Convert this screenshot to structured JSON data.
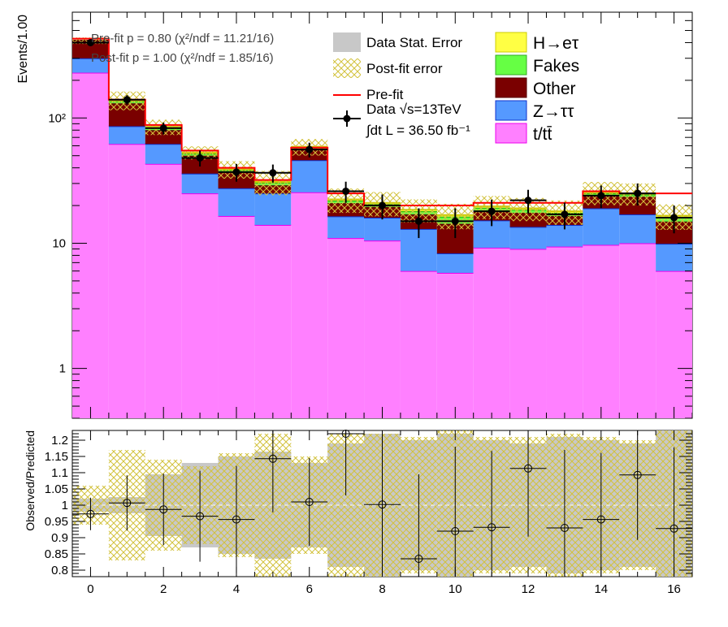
{
  "chart_data": {
    "type": "bar",
    "x": [
      0,
      1,
      2,
      3,
      4,
      5,
      6,
      7,
      8,
      9,
      10,
      11,
      12,
      13,
      14,
      15,
      16
    ],
    "top": {
      "ylabel": "Events/1.00",
      "yscale": "log",
      "ylim": [
        0.4,
        700
      ],
      "yticks": [
        "1",
        "10",
        "10²"
      ],
      "series": [
        {
          "name": "t/tt̄",
          "color": "#ff80ff",
          "values": [
            230,
            62,
            43,
            25,
            16.5,
            14,
            25.5,
            11,
            10.5,
            6,
            5.8,
            9.2,
            9,
            9.4,
            9.7,
            10,
            6
          ]
        },
        {
          "name": "Z→ττ",
          "color": "#5599ff",
          "values": [
            70,
            24,
            19,
            11,
            11,
            11,
            20.5,
            5.4,
            5.5,
            7,
            2.5,
            6,
            4.5,
            4.6,
            9.3,
            7,
            3.9
          ]
        },
        {
          "name": "Other",
          "color": "#7a0000",
          "values": [
            115,
            45,
            18,
            14,
            9.5,
            4,
            11,
            4.5,
            3.5,
            4,
            6,
            3,
            4,
            2.5,
            5,
            6.5,
            5
          ]
        },
        {
          "name": "Fakes",
          "color": "#66ff44",
          "values": [
            0,
            5,
            3,
            2,
            1.5,
            1.5,
            1.5,
            1,
            1,
            1,
            2,
            1,
            1,
            1,
            1,
            1,
            1.2
          ]
        },
        {
          "name": "H→eτ",
          "color": "#ffff44",
          "values": [
            0,
            3,
            2,
            1,
            0.5,
            0.5,
            0.5,
            0.5,
            0.5,
            0.5,
            0.5,
            0.5,
            0.5,
            0.5,
            0.5,
            0.5,
            0.5
          ]
        }
      ],
      "prefit": [
        430,
        140,
        88,
        55,
        40,
        32,
        58,
        25,
        20,
        20,
        20,
        21,
        21,
        21,
        26,
        25,
        25
      ],
      "data": [
        400,
        140,
        83,
        48,
        37,
        36.5,
        56,
        26,
        20,
        15,
        15,
        18,
        22,
        17,
        24,
        25,
        16
      ],
      "data_err": [
        20,
        12,
        9,
        7,
        6,
        6,
        7.5,
        5,
        4.5,
        4,
        4,
        4.3,
        4.7,
        4.1,
        4.9,
        5,
        4
      ]
    },
    "bottom": {
      "ylabel": "Observed/Predicted",
      "ylim": [
        0.78,
        1.23
      ],
      "yticks": [
        "0.8",
        "0.85",
        "0.9",
        "0.95",
        "1",
        "1.05",
        "1.1",
        "1.15",
        "1.2"
      ],
      "ratio": [
        0.973,
        1.007,
        0.987,
        0.966,
        0.956,
        1.143,
        1.01,
        1.22,
        1.002,
        0.835,
        0.92,
        0.932,
        1.113,
        0.93,
        0.956,
        1.093,
        0.928
      ],
      "ratio_err": [
        0.05,
        0.085,
        0.11,
        0.14,
        0.165,
        0.165,
        0.135,
        0.19,
        0.225,
        0.26,
        0.26,
        0.235,
        0.21,
        0.24,
        0.205,
        0.2,
        0.25
      ],
      "stat_err": [
        0.02,
        0.025,
        0.095,
        0.13,
        0.15,
        0.165,
        0.13,
        0.19,
        0.22,
        0.2,
        0.22,
        0.2,
        0.19,
        0.21,
        0.2,
        0.19,
        0.23
      ],
      "postfit_err": [
        0.06,
        0.17,
        0.14,
        0.12,
        0.16,
        0.22,
        0.15,
        0.22,
        0.22,
        0.21,
        0.23,
        0.21,
        0.21,
        0.22,
        0.21,
        0.2,
        0.23
      ]
    },
    "xticks": [
      "0",
      "2",
      "4",
      "6",
      "8",
      "10",
      "12",
      "14",
      "16"
    ],
    "fit_info": {
      "prefit": "Pre-fit   p = 0.80 (χ²/ndf = 11.21/16)",
      "postfit": "Post-fit p = 1.00 (χ²/ndf = 1.85/16)"
    },
    "legend": {
      "stat_error": "Data Stat. Error",
      "postfit_error": "Post-fit error",
      "prefit": "Pre-fit",
      "data": "Data  √s=13TeV",
      "lumi": "∫dt L = 36.50 fb⁻¹",
      "heta": "H→eτ",
      "fakes": "Fakes",
      "other": "Other",
      "ztautau": "Z→ττ",
      "ttbar": "t/tt̄"
    },
    "colors": {
      "prefit": "#ff0000",
      "stat": "#c8c8c8",
      "postfit_hatch": "#d4c44c",
      "data": "#000000",
      "band_fill": "#d8d8a8"
    }
  }
}
